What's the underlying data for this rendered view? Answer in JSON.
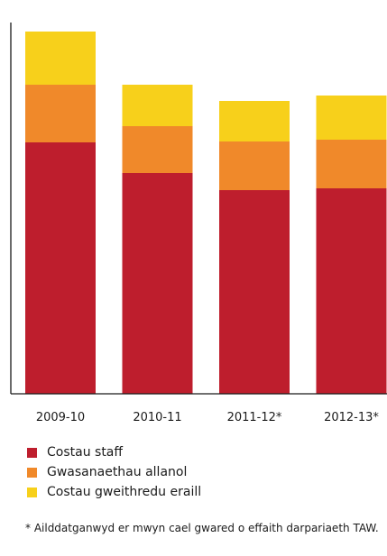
{
  "chart_data": {
    "type": "bar",
    "stacked": true,
    "categories": [
      "2009-10",
      "2010-11",
      "2011-12*",
      "2012-13*"
    ],
    "series": [
      {
        "name": "Costau staff",
        "values": [
          279,
          245,
          226,
          228
        ],
        "color": "#be1e2d"
      },
      {
        "name": "Gwasanaethau allanol",
        "values": [
          64,
          52,
          54,
          54
        ],
        "color": "#f0892a"
      },
      {
        "name": "Costau gweithredu eraill",
        "values": [
          59,
          46,
          45,
          49
        ],
        "color": "#f7d01b"
      }
    ],
    "ylim": [
      0,
      412
    ],
    "yaxis_visible": true,
    "yaxis_ticks_visible": false,
    "grid": false,
    "legend_position": "bottom-left"
  },
  "footnote": "* Ailddatganwyd er mwyn cael gwared o effaith darpariaeth TAW."
}
